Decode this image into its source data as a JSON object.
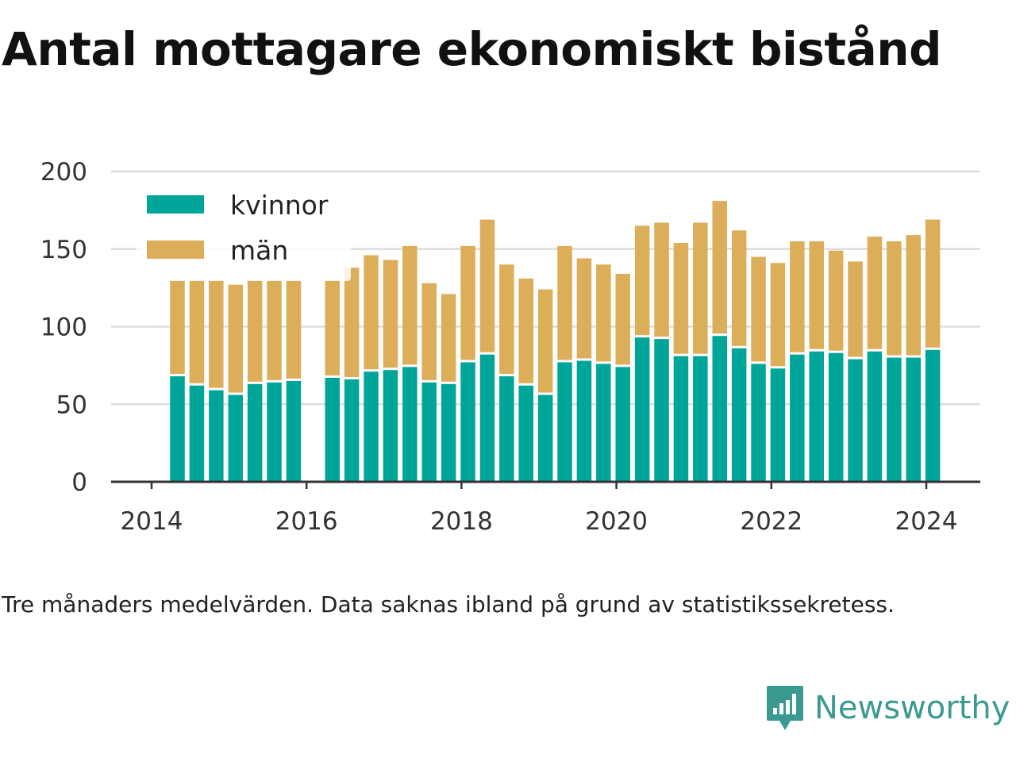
{
  "title": "Antal mottagare ekonomiskt bistånd",
  "footnote": "Tre månaders medelvärden. Data saknas ibland på grund av statistikssekretess.",
  "brand": {
    "name": "Newsworthy",
    "icon": "newsworthy-logo-icon",
    "color": "#3a9a91"
  },
  "chart_data": {
    "type": "bar",
    "stacked": true,
    "x_label_ticks": [
      "2014",
      "2016",
      "2018",
      "2020",
      "2022",
      "2024"
    ],
    "y_ticks": [
      0,
      50,
      100,
      150,
      200
    ],
    "ylim": [
      0,
      200
    ],
    "grid": true,
    "legend_position": "top-left",
    "categories": [
      "2014-05",
      "2014-08",
      "2014-11",
      "2015-02",
      "2015-05",
      "2015-08",
      "2015-11",
      "2016-02",
      "2016-05",
      "2016-08",
      "2016-11",
      "2017-02",
      "2017-05",
      "2017-08",
      "2017-11",
      "2018-02",
      "2018-05",
      "2018-08",
      "2018-11",
      "2019-02",
      "2019-05",
      "2019-08",
      "2019-11",
      "2020-02",
      "2020-05",
      "2020-08",
      "2020-11",
      "2021-02",
      "2021-05",
      "2021-08",
      "2021-11",
      "2022-02",
      "2022-05",
      "2022-08",
      "2022-11",
      "2023-02",
      "2023-05",
      "2023-08",
      "2023-11",
      "2024-02"
    ],
    "series": [
      {
        "name": "kvinnor",
        "color": "#00a59a",
        "values": [
          68,
          62,
          59,
          56,
          63,
          64,
          65,
          null,
          67,
          66,
          71,
          72,
          74,
          64,
          63,
          77,
          82,
          68,
          62,
          56,
          77,
          78,
          76,
          74,
          93,
          92,
          81,
          81,
          94,
          86,
          76,
          73,
          82,
          84,
          83,
          79,
          84,
          80,
          80,
          85
        ]
      },
      {
        "name": "män",
        "color": "#dcae5a",
        "values": [
          62,
          68,
          71,
          71,
          67,
          66,
          65,
          null,
          63,
          72,
          75,
          71,
          78,
          64,
          58,
          75,
          87,
          72,
          69,
          68,
          75,
          66,
          64,
          60,
          72,
          75,
          73,
          86,
          87,
          76,
          69,
          68,
          73,
          71,
          66,
          63,
          74,
          75,
          79,
          84
        ]
      }
    ]
  }
}
